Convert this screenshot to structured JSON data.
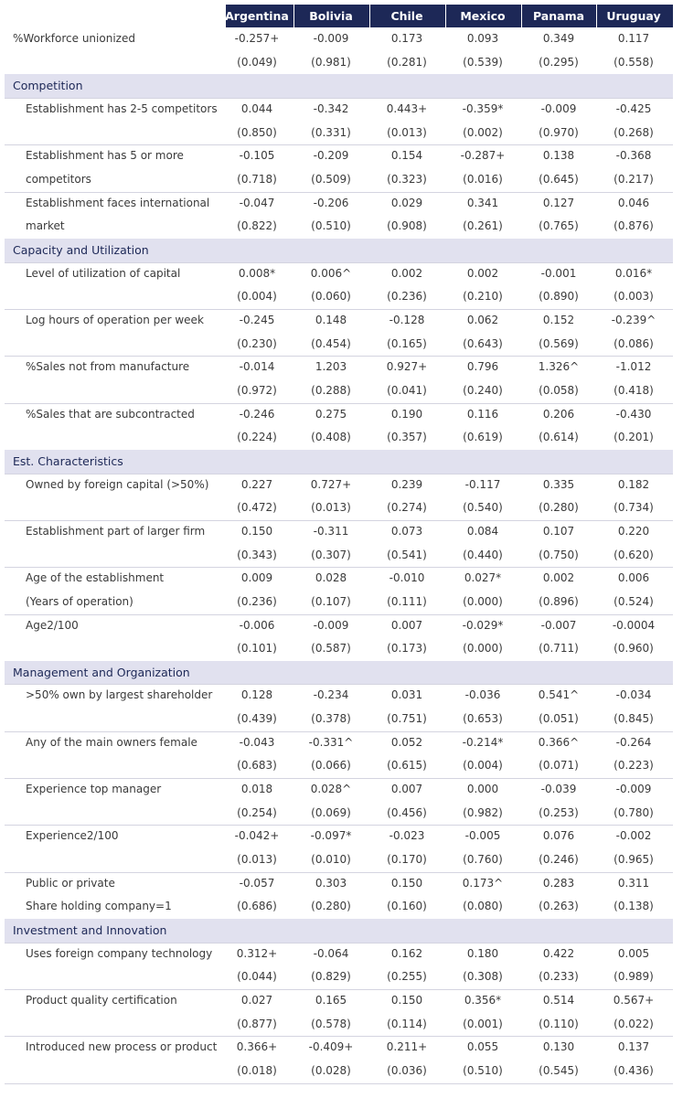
{
  "table": {
    "columns": [
      "Argentina",
      "Bolivia",
      "Chile",
      "Mexico",
      "Panama",
      "Uruguay"
    ],
    "rows": [
      {
        "label": [
          "%Workforce unionized"
        ],
        "values": [
          "-0.257+",
          "-0.009",
          "0.173",
          "0.093",
          "0.349",
          "0.117"
        ],
        "pvalues": [
          "(0.049)",
          "(0.981)",
          "(0.281)",
          "(0.539)",
          "(0.295)",
          "(0.558)"
        ]
      },
      {
        "section": "Competition"
      },
      {
        "label": [
          "Establishment has 2-5 competitors"
        ],
        "values": [
          "0.044",
          "-0.342",
          "0.443+",
          "-0.359*",
          "-0.009",
          "-0.425"
        ],
        "pvalues": [
          "(0.850)",
          "(0.331)",
          "(0.013)",
          "(0.002)",
          "(0.970)",
          "(0.268)"
        ]
      },
      {
        "label": [
          "Establishment has 5 or more",
          "competitors"
        ],
        "values": [
          "-0.105",
          "-0.209",
          "0.154",
          "-0.287+",
          "0.138",
          "-0.368"
        ],
        "pvalues": [
          "(0.718)",
          "(0.509)",
          "(0.323)",
          "(0.016)",
          "(0.645)",
          "(0.217)"
        ]
      },
      {
        "label": [
          "Establishment faces international",
          "market"
        ],
        "values": [
          "-0.047",
          "-0.206",
          "0.029",
          "0.341",
          "0.127",
          "0.046"
        ],
        "pvalues": [
          "(0.822)",
          "(0.510)",
          "(0.908)",
          "(0.261)",
          "(0.765)",
          "(0.876)"
        ]
      },
      {
        "section": "Capacity and Utilization"
      },
      {
        "label": [
          "Level of utilization of capital"
        ],
        "values": [
          "0.008*",
          "0.006^",
          "0.002",
          "0.002",
          "-0.001",
          "0.016*"
        ],
        "pvalues": [
          "(0.004)",
          "(0.060)",
          "(0.236)",
          "(0.210)",
          "(0.890)",
          "(0.003)"
        ]
      },
      {
        "label": [
          "Log hours of operation per week"
        ],
        "values": [
          "-0.245",
          "0.148",
          "-0.128",
          "0.062",
          "0.152",
          "-0.239^"
        ],
        "pvalues": [
          "(0.230)",
          "(0.454)",
          "(0.165)",
          "(0.643)",
          "(0.569)",
          "(0.086)"
        ]
      },
      {
        "label": [
          "%Sales not from manufacture"
        ],
        "values": [
          "-0.014",
          "1.203",
          "0.927+",
          "0.796",
          "1.326^",
          "-1.012"
        ],
        "pvalues": [
          "(0.972)",
          "(0.288)",
          "(0.041)",
          "(0.240)",
          "(0.058)",
          "(0.418)"
        ]
      },
      {
        "label": [
          "%Sales that are subcontracted"
        ],
        "values": [
          "-0.246",
          "0.275",
          "0.190",
          "0.116",
          "0.206",
          "-0.430"
        ],
        "pvalues": [
          "(0.224)",
          "(0.408)",
          "(0.357)",
          "(0.619)",
          "(0.614)",
          "(0.201)"
        ]
      },
      {
        "section": "Est. Characteristics"
      },
      {
        "label": [
          "Owned by foreign capital (>50%)"
        ],
        "values": [
          "0.227",
          "0.727+",
          "0.239",
          "-0.117",
          "0.335",
          "0.182"
        ],
        "pvalues": [
          "(0.472)",
          "(0.013)",
          "(0.274)",
          "(0.540)",
          "(0.280)",
          "(0.734)"
        ]
      },
      {
        "label": [
          "Establishment part of larger firm"
        ],
        "values": [
          "0.150",
          "-0.311",
          "0.073",
          "0.084",
          "0.107",
          "0.220"
        ],
        "pvalues": [
          "(0.343)",
          "(0.307)",
          "(0.541)",
          "(0.440)",
          "(0.750)",
          "(0.620)"
        ]
      },
      {
        "label": [
          "Age of the establishment",
          "(Years of operation)"
        ],
        "values": [
          "0.009",
          "0.028",
          "-0.010",
          "0.027*",
          "0.002",
          "0.006"
        ],
        "pvalues": [
          "(0.236)",
          "(0.107)",
          "(0.111)",
          "(0.000)",
          "(0.896)",
          "(0.524)"
        ]
      },
      {
        "label": [
          "Age2/100"
        ],
        "values": [
          "-0.006",
          "-0.009",
          "0.007",
          "-0.029*",
          "-0.007",
          "-0.0004"
        ],
        "pvalues": [
          "(0.101)",
          "(0.587)",
          "(0.173)",
          "(0.000)",
          "(0.711)",
          "(0.960)"
        ]
      },
      {
        "section": "Management and Organization"
      },
      {
        "label": [
          ">50% own by largest shareholder"
        ],
        "values": [
          "0.128",
          "-0.234",
          "0.031",
          "-0.036",
          "0.541^",
          "-0.034"
        ],
        "pvalues": [
          "(0.439)",
          "(0.378)",
          "(0.751)",
          "(0.653)",
          "(0.051)",
          "(0.845)"
        ]
      },
      {
        "label": [
          "Any of the main owners female"
        ],
        "values": [
          "-0.043",
          "-0.331^",
          "0.052",
          "-0.214*",
          "0.366^",
          "-0.264"
        ],
        "pvalues": [
          "(0.683)",
          "(0.066)",
          "(0.615)",
          "(0.004)",
          "(0.071)",
          "(0.223)"
        ]
      },
      {
        "label": [
          "Experience top manager"
        ],
        "values": [
          "0.018",
          "0.028^",
          "0.007",
          "0.000",
          "-0.039",
          "-0.009"
        ],
        "pvalues": [
          "(0.254)",
          "(0.069)",
          "(0.456)",
          "(0.982)",
          "(0.253)",
          "(0.780)"
        ]
      },
      {
        "label": [
          "Experience2/100"
        ],
        "values": [
          "-0.042+",
          "-0.097*",
          "-0.023",
          "-0.005",
          "0.076",
          "-0.002"
        ],
        "pvalues": [
          "(0.013)",
          "(0.010)",
          "(0.170)",
          "(0.760)",
          "(0.246)",
          "(0.965)"
        ]
      },
      {
        "label": [
          "Public or private",
          "Share holding company=1"
        ],
        "values": [
          "-0.057",
          "0.303",
          "0.150",
          "0.173^",
          "0.283",
          "0.311"
        ],
        "pvalues": [
          "(0.686)",
          "(0.280)",
          "(0.160)",
          "(0.080)",
          "(0.263)",
          "(0.138)"
        ]
      },
      {
        "section": "Investment and Innovation"
      },
      {
        "label": [
          "Uses foreign company technology"
        ],
        "values": [
          "0.312+",
          "-0.064",
          "0.162",
          "0.180",
          "0.422",
          "0.005"
        ],
        "pvalues": [
          "(0.044)",
          "(0.829)",
          "(0.255)",
          "(0.308)",
          "(0.233)",
          "(0.989)"
        ]
      },
      {
        "label": [
          "Product quality certification"
        ],
        "values": [
          "0.027",
          "0.165",
          "0.150",
          "0.356*",
          "0.514",
          "0.567+"
        ],
        "pvalues": [
          "(0.877)",
          "(0.578)",
          "(0.114)",
          "(0.001)",
          "(0.110)",
          "(0.022)"
        ]
      },
      {
        "label": [
          "Introduced new process or product"
        ],
        "values": [
          "0.366+",
          "-0.409+",
          "0.211+",
          "0.055",
          "0.130",
          "0.137"
        ],
        "pvalues": [
          "(0.018)",
          "(0.028)",
          "(0.036)",
          "(0.510)",
          "(0.545)",
          "(0.436)"
        ]
      }
    ]
  }
}
